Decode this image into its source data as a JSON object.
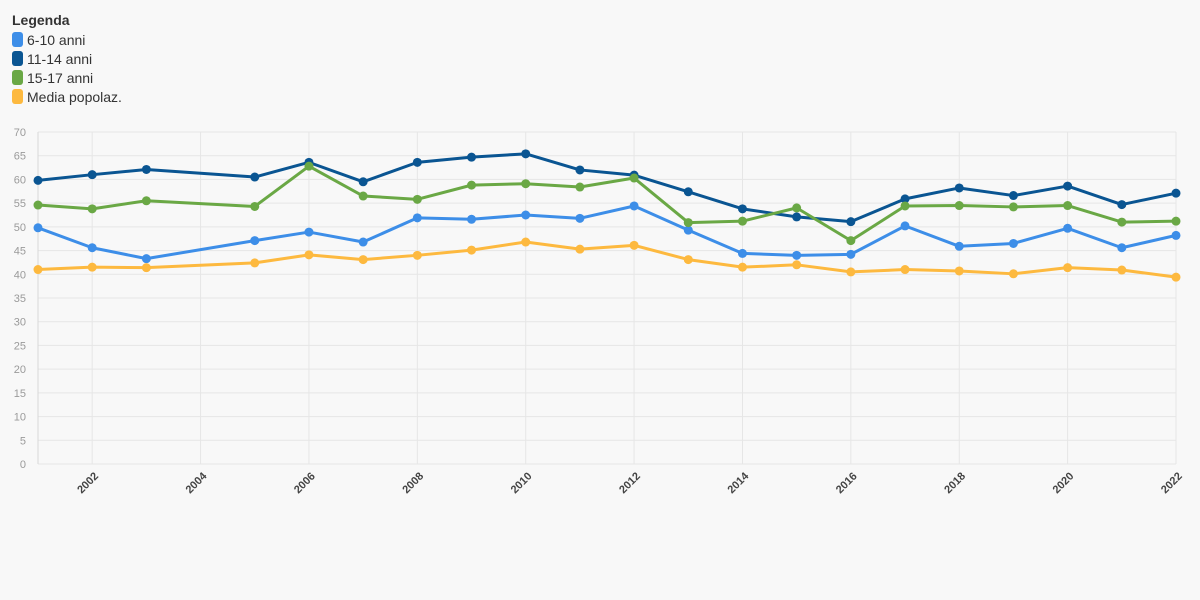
{
  "legend": {
    "title": "Legenda"
  },
  "chart_data": {
    "type": "line",
    "x": [
      2001,
      2002,
      2003,
      2005,
      2006,
      2007,
      2008,
      2009,
      2010,
      2011,
      2012,
      2013,
      2014,
      2015,
      2016,
      2017,
      2018,
      2019,
      2020,
      2021,
      2022
    ],
    "xticks": [
      2002,
      2004,
      2006,
      2008,
      2010,
      2012,
      2014,
      2016,
      2018,
      2020,
      2022
    ],
    "ylim": [
      0,
      70
    ],
    "yticks": [
      0,
      5,
      10,
      15,
      20,
      25,
      30,
      35,
      40,
      45,
      50,
      55,
      60,
      65,
      70
    ],
    "grid": true,
    "legend_position": "top-left",
    "series": [
      {
        "name": "6-10 anni",
        "color": "#3d8ee8",
        "values": [
          49.8,
          45.6,
          43.3,
          47.1,
          48.9,
          46.8,
          51.9,
          51.6,
          52.5,
          51.8,
          54.4,
          49.3,
          44.4,
          44.0,
          44.2,
          50.2,
          45.9,
          46.5,
          49.7,
          45.6,
          48.2
        ]
      },
      {
        "name": "11-14 anni",
        "color": "#0a5592",
        "values": [
          59.8,
          61.0,
          62.1,
          60.5,
          63.6,
          59.5,
          63.6,
          64.7,
          65.4,
          62.0,
          60.9,
          57.4,
          53.8,
          52.1,
          51.1,
          55.9,
          58.2,
          56.6,
          58.6,
          54.7,
          57.1
        ]
      },
      {
        "name": "15-17 anni",
        "color": "#6aa845",
        "values": [
          54.6,
          53.8,
          55.5,
          54.3,
          62.8,
          56.5,
          55.8,
          58.8,
          59.1,
          58.4,
          60.3,
          50.9,
          51.2,
          54.0,
          47.1,
          54.4,
          54.5,
          54.2,
          54.5,
          51.0,
          51.2
        ]
      },
      {
        "name": "Media popolaz.",
        "color": "#fdb93f",
        "values": [
          41.0,
          41.5,
          41.4,
          42.4,
          44.1,
          43.1,
          44.0,
          45.1,
          46.8,
          45.3,
          46.1,
          43.1,
          41.5,
          42.0,
          40.5,
          41.0,
          40.7,
          40.1,
          41.4,
          40.9,
          39.4
        ]
      }
    ]
  }
}
